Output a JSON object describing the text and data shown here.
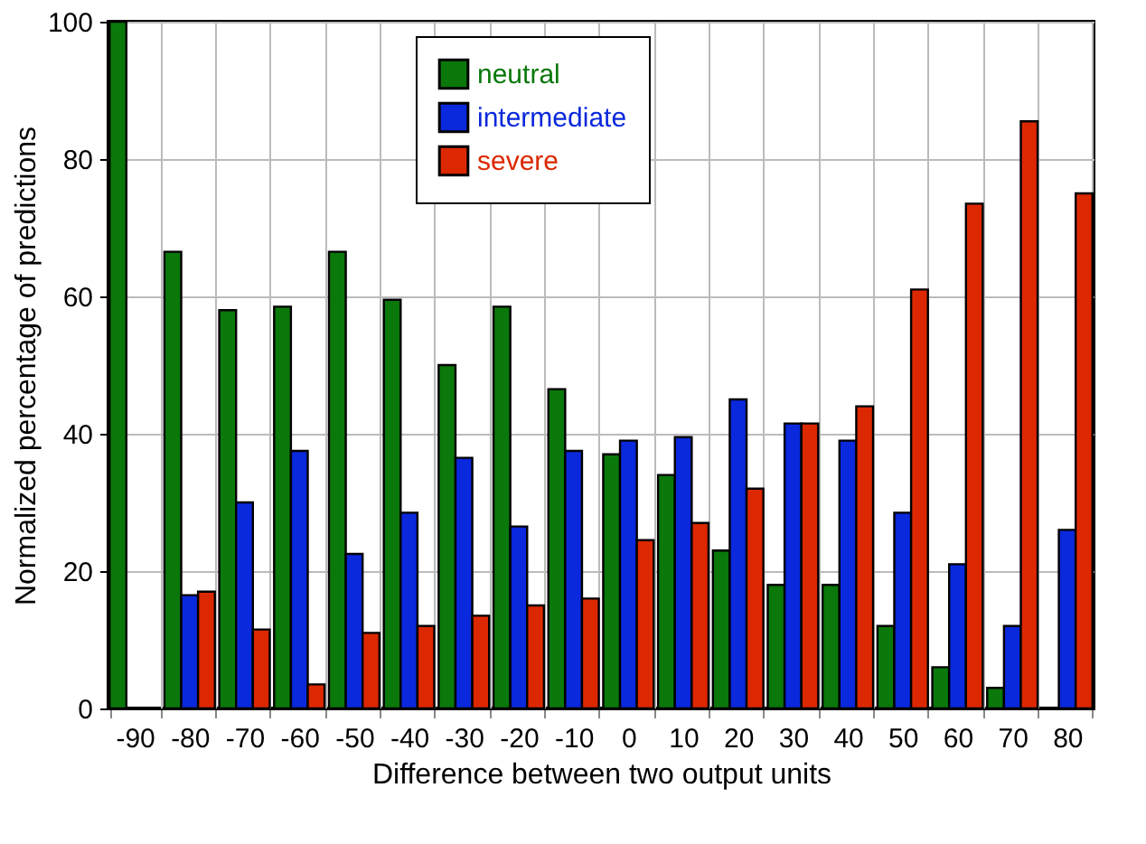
{
  "chart_data": {
    "type": "bar",
    "xlabel": "Difference between two output units",
    "ylabel": "Normalized percentage of predictions",
    "categories": [
      "-90",
      "-80",
      "-70",
      "-60",
      "-50",
      "-40",
      "-30",
      "-20",
      "-10",
      "0",
      "10",
      "20",
      "30",
      "40",
      "50",
      "60",
      "70",
      "80"
    ],
    "series": [
      {
        "name": "neutral",
        "color": "#0a780a",
        "values": [
          100,
          66.5,
          58,
          58.5,
          66.5,
          59.5,
          50,
          58.5,
          46.5,
          37,
          34,
          23,
          18,
          18,
          12,
          6,
          3,
          null
        ]
      },
      {
        "name": "intermediate",
        "color": "#0a28dc",
        "values": [
          null,
          16.5,
          30,
          37.5,
          22.5,
          28.5,
          36.5,
          26.5,
          37.5,
          39,
          39.5,
          45,
          41.5,
          39,
          28.5,
          21,
          12,
          26
        ]
      },
      {
        "name": "severe",
        "color": "#dc2800",
        "values": [
          null,
          17,
          11.5,
          3.5,
          11,
          12,
          13.5,
          15,
          16,
          24.5,
          27,
          32,
          41.5,
          44,
          61,
          73.5,
          85.5,
          75
        ]
      }
    ],
    "ylim": [
      0,
      100
    ],
    "yticks": [
      0,
      20,
      40,
      60,
      80,
      100
    ],
    "grid": true,
    "legend": "top"
  }
}
